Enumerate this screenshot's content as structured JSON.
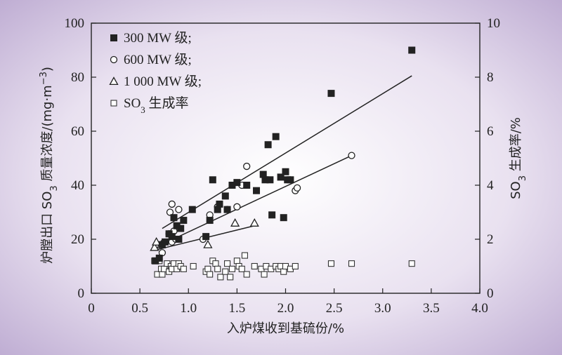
{
  "chart_data": {
    "type": "scatter",
    "xlabel": "入炉煤收到基硫份/%",
    "ylabel_left": {
      "pre": "炉膛出口 SO",
      "sub": "3",
      "post": " 质量浓度/(mg·m",
      "sup": "−3",
      "end": ")"
    },
    "ylabel_right": {
      "pre": "SO",
      "sub": "3",
      "post": " 生成率/%"
    },
    "xlim": [
      0,
      4.0
    ],
    "ylim_left": [
      0,
      100
    ],
    "ylim_right": [
      0,
      10
    ],
    "x_ticks": [
      "0",
      "0.5",
      "1.0",
      "1.5",
      "2.0",
      "2.5",
      "3.0",
      "3.5",
      "4.0"
    ],
    "y_left_ticks": [
      "0",
      "20",
      "40",
      "60",
      "80",
      "100"
    ],
    "y_right_ticks": [
      "0",
      "2",
      "4",
      "6",
      "8",
      "10"
    ],
    "legend_position": "top-left",
    "legend": [
      {
        "marker": "filled-square",
        "label": "300 MW 级;"
      },
      {
        "marker": "open-circle",
        "label": "600 MW 级;"
      },
      {
        "marker": "open-triangle",
        "label": "1 000 MW 级;"
      },
      {
        "marker": "open-square",
        "label": "SO",
        "sub": "3",
        "post": " 生成率"
      }
    ],
    "series": [
      {
        "marker": "filled-square",
        "axis": "left",
        "points": [
          [
            0.66,
            12
          ],
          [
            0.7,
            13
          ],
          [
            0.73,
            18
          ],
          [
            0.76,
            19
          ],
          [
            0.8,
            22
          ],
          [
            0.83,
            21
          ],
          [
            0.85,
            28
          ],
          [
            0.88,
            25
          ],
          [
            0.9,
            20
          ],
          [
            0.92,
            24
          ],
          [
            0.95,
            27
          ],
          [
            1.04,
            31
          ],
          [
            1.18,
            21
          ],
          [
            1.22,
            27
          ],
          [
            1.25,
            42
          ],
          [
            1.3,
            31
          ],
          [
            1.32,
            33
          ],
          [
            1.38,
            36
          ],
          [
            1.4,
            31
          ],
          [
            1.45,
            40
          ],
          [
            1.5,
            41
          ],
          [
            1.6,
            40
          ],
          [
            1.7,
            38
          ],
          [
            1.77,
            44
          ],
          [
            1.79,
            42
          ],
          [
            1.82,
            55
          ],
          [
            1.84,
            42
          ],
          [
            1.86,
            29
          ],
          [
            1.9,
            58
          ],
          [
            1.95,
            43
          ],
          [
            1.98,
            28
          ],
          [
            2.0,
            45
          ],
          [
            2.02,
            42
          ],
          [
            2.05,
            42
          ],
          [
            2.47,
            74
          ],
          [
            3.3,
            90
          ]
        ]
      },
      {
        "marker": "open-circle",
        "axis": "left",
        "points": [
          [
            0.73,
            15
          ],
          [
            0.8,
            22
          ],
          [
            0.81,
            30
          ],
          [
            0.83,
            33
          ],
          [
            0.83,
            19
          ],
          [
            0.85,
            23
          ],
          [
            0.87,
            20
          ],
          [
            0.9,
            31
          ],
          [
            1.15,
            20
          ],
          [
            1.22,
            29
          ],
          [
            1.3,
            32
          ],
          [
            1.4,
            31
          ],
          [
            1.5,
            32
          ],
          [
            1.55,
            40
          ],
          [
            1.6,
            47
          ],
          [
            2.1,
            38
          ],
          [
            2.12,
            39
          ],
          [
            2.68,
            51
          ]
        ]
      },
      {
        "marker": "open-triangle",
        "axis": "left",
        "points": [
          [
            0.65,
            17
          ],
          [
            0.67,
            19
          ],
          [
            0.72,
            18
          ],
          [
            1.2,
            18
          ],
          [
            1.48,
            26
          ],
          [
            1.68,
            26
          ]
        ]
      },
      {
        "marker": "open-square",
        "axis": "right",
        "points": [
          [
            0.65,
            1.2
          ],
          [
            0.68,
            0.7
          ],
          [
            0.7,
            1.2
          ],
          [
            0.72,
            0.9
          ],
          [
            0.73,
            0.7
          ],
          [
            0.75,
            0.9
          ],
          [
            0.78,
            1.1
          ],
          [
            0.8,
            0.8
          ],
          [
            0.82,
            1.0
          ],
          [
            0.83,
            0.9
          ],
          [
            0.85,
            1.1
          ],
          [
            0.88,
            0.9
          ],
          [
            0.9,
            1.1
          ],
          [
            0.92,
            1.0
          ],
          [
            0.95,
            0.9
          ],
          [
            1.05,
            1.0
          ],
          [
            1.18,
            0.8
          ],
          [
            1.2,
            0.9
          ],
          [
            1.22,
            0.7
          ],
          [
            1.25,
            1.2
          ],
          [
            1.28,
            1.1
          ],
          [
            1.3,
            0.9
          ],
          [
            1.33,
            0.6
          ],
          [
            1.38,
            0.8
          ],
          [
            1.4,
            1.1
          ],
          [
            1.43,
            0.6
          ],
          [
            1.45,
            0.9
          ],
          [
            1.5,
            1.2
          ],
          [
            1.52,
            1.0
          ],
          [
            1.55,
            0.9
          ],
          [
            1.58,
            1.4
          ],
          [
            1.6,
            0.7
          ],
          [
            1.68,
            1.0
          ],
          [
            1.75,
            0.9
          ],
          [
            1.78,
            0.7
          ],
          [
            1.8,
            1.0
          ],
          [
            1.85,
            0.9
          ],
          [
            1.9,
            1.0
          ],
          [
            1.93,
            0.9
          ],
          [
            1.95,
            1.0
          ],
          [
            1.98,
            0.8
          ],
          [
            2.0,
            1.0
          ],
          [
            2.05,
            0.9
          ],
          [
            2.1,
            1.0
          ],
          [
            2.47,
            1.1
          ],
          [
            2.68,
            1.1
          ],
          [
            3.3,
            1.1
          ]
        ]
      }
    ],
    "fit_lines": [
      {
        "name": "300 MW 级 fit",
        "x": [
          0.73,
          3.3
        ],
        "y": [
          24,
          80.5
        ]
      },
      {
        "name": "600 MW 级 fit",
        "x": [
          0.78,
          2.68
        ],
        "y": [
          19,
          51
        ]
      },
      {
        "name": "1 000 MW 级 fit",
        "x": [
          0.66,
          1.68
        ],
        "y": [
          16,
          25
        ]
      }
    ]
  }
}
